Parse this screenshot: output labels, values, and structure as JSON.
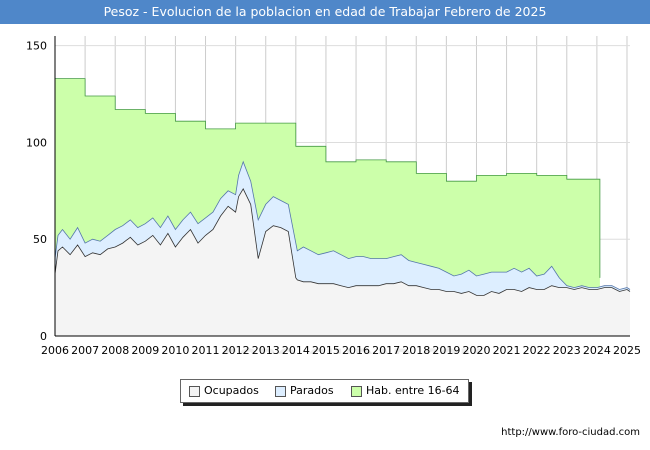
{
  "chart_data": {
    "type": "area",
    "title": "Pesoz - Evolucion de la poblacion en edad de Trabajar Febrero de 2025",
    "xlabel": "",
    "ylabel": "",
    "xlim": [
      2006,
      2025.1
    ],
    "ylim": [
      0,
      155
    ],
    "yticks": [
      0,
      50,
      100,
      150
    ],
    "xticks": [
      "2006",
      "2007",
      "2008",
      "2009",
      "2010",
      "2011",
      "2012",
      "2013",
      "2014",
      "2015",
      "2016",
      "2017",
      "2018",
      "2019",
      "2020",
      "2021",
      "2022",
      "2023",
      "2024",
      "2025"
    ],
    "grid": true,
    "legend_position": "bottom-center",
    "watermark": "FORO-CIUDAD.COM",
    "series": [
      {
        "name": "Hab. entre 16-64",
        "color": "#ccffaa",
        "line_color": "#449944",
        "step": true,
        "x": [
          2006,
          2007,
          2008,
          2009,
          2010,
          2011,
          2012,
          2013,
          2014,
          2015,
          2016,
          2017,
          2018,
          2019,
          2020,
          2021,
          2022,
          2023,
          2024,
          2024.1
        ],
        "values": [
          133,
          124,
          117,
          115,
          111,
          107,
          110,
          110,
          98,
          90,
          91,
          90,
          84,
          80,
          83,
          84,
          83,
          81,
          81,
          30
        ]
      },
      {
        "name": "Parados",
        "color": "#ddeeff",
        "line_color": "#5577aa",
        "step": false,
        "x": [
          2006.0,
          2006.1,
          2006.25,
          2006.5,
          2006.75,
          2007.0,
          2007.25,
          2007.5,
          2007.75,
          2008.0,
          2008.25,
          2008.5,
          2008.75,
          2009.0,
          2009.25,
          2009.5,
          2009.75,
          2010.0,
          2010.25,
          2010.5,
          2010.75,
          2011.0,
          2011.25,
          2011.5,
          2011.75,
          2012.0,
          2012.1,
          2012.25,
          2012.5,
          2012.75,
          2013.0,
          2013.25,
          2013.5,
          2013.75,
          2014.0,
          2014.05,
          2014.25,
          2014.5,
          2014.75,
          2015.0,
          2015.25,
          2015.5,
          2015.75,
          2016.0,
          2016.25,
          2016.5,
          2016.75,
          2017.0,
          2017.25,
          2017.5,
          2017.75,
          2018.0,
          2018.25,
          2018.5,
          2018.75,
          2019.0,
          2019.25,
          2019.5,
          2019.75,
          2020.0,
          2020.25,
          2020.5,
          2020.75,
          2021.0,
          2021.25,
          2021.5,
          2021.75,
          2022.0,
          2022.25,
          2022.5,
          2022.75,
          2023.0,
          2023.25,
          2023.5,
          2023.75,
          2024.0,
          2024.25,
          2024.5,
          2024.75,
          2025.0,
          2025.1
        ],
        "values": [
          40,
          52,
          55,
          50,
          56,
          48,
          50,
          49,
          52,
          55,
          57,
          60,
          56,
          58,
          61,
          56,
          62,
          55,
          60,
          64,
          58,
          61,
          64,
          71,
          75,
          73,
          83,
          90,
          80,
          60,
          68,
          72,
          70,
          68,
          48,
          44,
          46,
          44,
          42,
          43,
          44,
          42,
          40,
          41,
          41,
          40,
          40,
          40,
          41,
          42,
          39,
          38,
          37,
          36,
          35,
          33,
          31,
          32,
          34,
          31,
          32,
          33,
          33,
          33,
          35,
          33,
          35,
          31,
          32,
          36,
          30,
          26,
          25,
          26,
          25,
          25,
          26,
          26,
          24,
          25,
          24
        ]
      },
      {
        "name": "Ocupados",
        "color": "#f4f4f4",
        "line_color": "#333333",
        "step": false,
        "x": [
          2006.0,
          2006.1,
          2006.25,
          2006.5,
          2006.75,
          2007.0,
          2007.25,
          2007.5,
          2007.75,
          2008.0,
          2008.25,
          2008.5,
          2008.75,
          2009.0,
          2009.25,
          2009.5,
          2009.75,
          2010.0,
          2010.25,
          2010.5,
          2010.75,
          2011.0,
          2011.25,
          2011.5,
          2011.75,
          2012.0,
          2012.1,
          2012.25,
          2012.5,
          2012.75,
          2013.0,
          2013.25,
          2013.5,
          2013.75,
          2014.0,
          2014.05,
          2014.25,
          2014.5,
          2014.75,
          2015.0,
          2015.25,
          2015.5,
          2015.75,
          2016.0,
          2016.25,
          2016.5,
          2016.75,
          2017.0,
          2017.25,
          2017.5,
          2017.75,
          2018.0,
          2018.25,
          2018.5,
          2018.75,
          2019.0,
          2019.25,
          2019.5,
          2019.75,
          2020.0,
          2020.25,
          2020.5,
          2020.75,
          2021.0,
          2021.25,
          2021.5,
          2021.75,
          2022.0,
          2022.25,
          2022.5,
          2022.75,
          2023.0,
          2023.25,
          2023.5,
          2023.75,
          2024.0,
          2024.25,
          2024.5,
          2024.75,
          2025.0,
          2025.1
        ],
        "values": [
          32,
          44,
          46,
          42,
          47,
          41,
          43,
          42,
          45,
          46,
          48,
          51,
          47,
          49,
          52,
          47,
          53,
          46,
          51,
          55,
          48,
          52,
          55,
          62,
          67,
          64,
          72,
          76,
          68,
          40,
          54,
          57,
          56,
          54,
          30,
          29,
          28,
          28,
          27,
          27,
          27,
          26,
          25,
          26,
          26,
          26,
          26,
          27,
          27,
          28,
          26,
          26,
          25,
          24,
          24,
          23,
          23,
          22,
          23,
          21,
          21,
          23,
          22,
          24,
          24,
          23,
          25,
          24,
          24,
          26,
          25,
          25,
          24,
          25,
          24,
          24,
          25,
          25,
          23,
          24,
          23
        ]
      }
    ]
  },
  "legend": {
    "items": [
      {
        "label": "Ocupados",
        "color": "#f4f4f4"
      },
      {
        "label": "Parados",
        "color": "#ddeeff"
      },
      {
        "label": "Hab. entre 16-64",
        "color": "#ccffaa"
      }
    ]
  },
  "footer": {
    "url": "http://www.foro-ciudad.com"
  }
}
